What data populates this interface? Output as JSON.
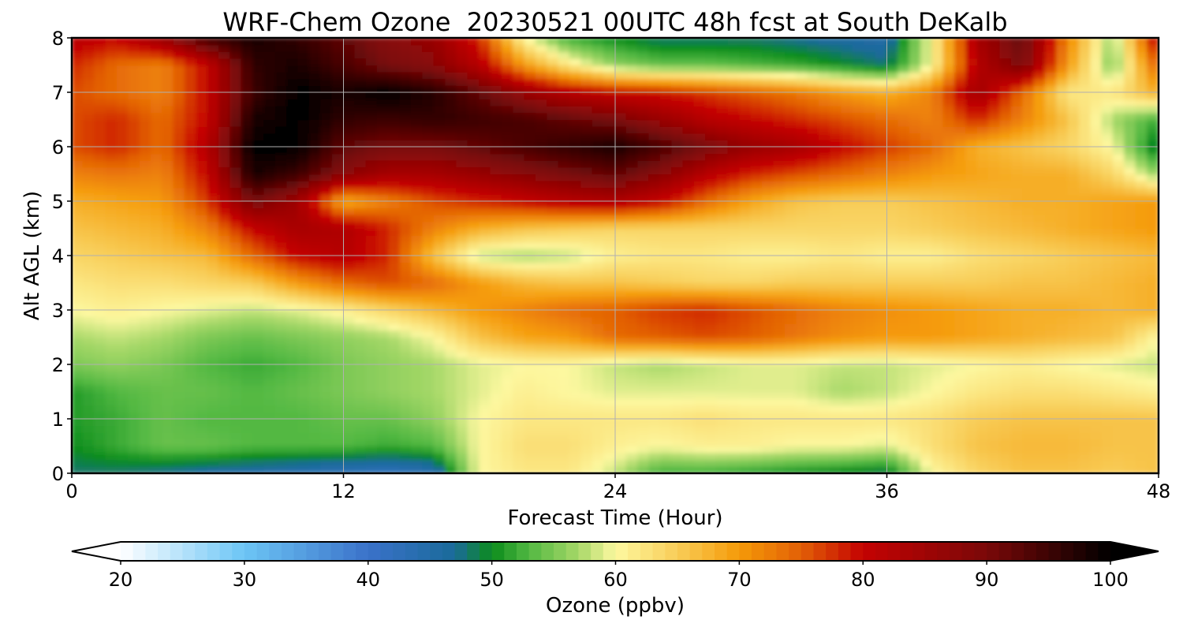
{
  "chart_data": {
    "type": "heatmap",
    "title": "WRF-Chem Ozone  20230521 00UTC 48h fcst at South DeKalb",
    "xlabel": "Forecast Time (Hour)",
    "ylabel": "Alt AGL (km)",
    "xlim": [
      0,
      48
    ],
    "ylim": [
      0,
      8
    ],
    "x_ticks": [
      "0",
      "12",
      "24",
      "36",
      "48"
    ],
    "y_ticks": [
      "0",
      "1",
      "2",
      "3",
      "4",
      "5",
      "6",
      "7",
      "8"
    ],
    "grid": true,
    "x": [
      0,
      2,
      4,
      6,
      8,
      10,
      12,
      14,
      16,
      18,
      20,
      22,
      24,
      26,
      28,
      30,
      32,
      34,
      36,
      38,
      40,
      42,
      44,
      46,
      48
    ],
    "y": [
      0,
      0.5,
      1,
      1.5,
      2,
      2.5,
      3,
      3.5,
      4,
      4.5,
      5,
      5.5,
      6,
      6.5,
      7,
      7.5,
      8
    ],
    "z": [
      [
        48,
        48,
        47,
        46,
        45,
        44,
        43,
        42,
        44,
        60,
        62,
        62,
        58,
        52,
        52,
        51,
        50,
        49,
        48,
        60,
        64,
        66,
        66,
        65,
        66
      ],
      [
        50,
        52,
        54,
        54,
        53,
        53,
        53,
        52,
        53,
        60,
        63,
        63,
        61,
        60,
        61,
        61,
        60,
        60,
        59,
        63,
        66,
        67,
        67,
        66,
        66
      ],
      [
        51,
        52,
        54,
        53,
        53,
        53,
        54,
        54,
        56,
        60,
        62,
        62,
        62,
        62,
        63,
        62,
        62,
        62,
        62,
        63,
        65,
        66,
        66,
        66,
        66
      ],
      [
        51,
        53,
        54,
        54,
        53,
        54,
        55,
        56,
        57,
        59,
        61,
        60,
        59,
        59,
        59,
        59,
        59,
        57,
        58,
        60,
        62,
        63,
        63,
        62,
        61
      ],
      [
        55,
        56,
        55,
        53,
        52,
        53,
        55,
        56,
        57,
        59,
        60,
        60,
        58,
        57,
        58,
        59,
        59,
        58,
        58,
        59,
        60,
        61,
        60,
        59,
        58
      ],
      [
        57,
        58,
        57,
        55,
        54,
        55,
        56,
        57,
        60,
        66,
        69,
        70,
        74,
        75,
        76,
        75,
        73,
        71,
        70,
        70,
        69,
        68,
        67,
        66,
        60
      ],
      [
        60,
        61,
        60,
        59,
        58,
        59,
        61,
        64,
        67,
        70,
        72,
        74,
        75,
        77,
        78,
        76,
        74,
        72,
        71,
        70,
        69,
        68,
        68,
        67,
        68
      ],
      [
        62,
        63,
        63,
        64,
        65,
        70,
        74,
        76,
        74,
        70,
        67,
        66,
        66,
        65,
        64,
        64,
        65,
        65,
        65,
        65,
        65,
        66,
        66,
        67,
        68
      ],
      [
        64,
        65,
        66,
        67,
        74,
        80,
        82,
        78,
        66,
        58,
        57,
        58,
        61,
        62,
        62,
        61,
        61,
        62,
        61,
        61,
        63,
        64,
        65,
        66,
        67
      ],
      [
        66,
        67,
        68,
        72,
        80,
        84,
        83,
        78,
        72,
        68,
        66,
        65,
        64,
        64,
        64,
        64,
        64,
        64,
        64,
        65,
        66,
        67,
        68,
        69,
        70
      ],
      [
        68,
        69,
        70,
        77,
        90,
        85,
        68,
        72,
        76,
        78,
        80,
        82,
        83,
        80,
        74,
        69,
        66,
        65,
        65,
        66,
        67,
        68,
        68,
        69,
        70
      ],
      [
        72,
        73,
        72,
        80,
        98,
        95,
        88,
        84,
        84,
        86,
        88,
        90,
        92,
        88,
        82,
        78,
        76,
        74,
        72,
        70,
        69,
        68,
        68,
        64,
        56
      ],
      [
        76,
        78,
        74,
        82,
        100,
        100,
        92,
        90,
        90,
        92,
        94,
        96,
        98,
        94,
        90,
        86,
        84,
        80,
        77,
        74,
        68,
        66,
        64,
        60,
        48
      ],
      [
        76,
        78,
        74,
        80,
        98,
        100,
        96,
        95,
        96,
        95,
        94,
        92,
        90,
        86,
        82,
        80,
        78,
        76,
        74,
        72,
        78,
        72,
        66,
        57,
        52
      ],
      [
        76,
        74,
        72,
        80,
        95,
        100,
        98,
        100,
        97,
        92,
        86,
        82,
        80,
        79,
        77,
        75,
        73,
        70,
        68,
        72,
        85,
        74,
        62,
        62,
        68
      ],
      [
        78,
        74,
        72,
        80,
        96,
        98,
        94,
        90,
        88,
        82,
        70,
        62,
        56,
        54,
        54,
        53,
        52,
        50,
        48,
        60,
        82,
        90,
        70,
        55,
        75
      ],
      [
        82,
        80,
        86,
        95,
        98,
        96,
        92,
        88,
        86,
        78,
        60,
        52,
        50,
        48,
        48,
        48,
        47,
        46,
        45,
        60,
        84,
        92,
        72,
        56,
        82
      ]
    ],
    "colorbar": {
      "label": "Ozone  (ppbv)",
      "min": 20,
      "max": 100,
      "ticks": [
        "20",
        "30",
        "40",
        "50",
        "60",
        "70",
        "80",
        "90",
        "100"
      ],
      "extend": "both"
    },
    "colors": {
      "stops": [
        [
          20,
          "#ffffff"
        ],
        [
          30,
          "#6cc5f5"
        ],
        [
          40,
          "#3a72c9"
        ],
        [
          47,
          "#1a6a9a"
        ],
        [
          50,
          "#0b8c1c"
        ],
        [
          53,
          "#52b842"
        ],
        [
          57,
          "#a6d868"
        ],
        [
          60,
          "#fdf8a0"
        ],
        [
          65,
          "#f8cd58"
        ],
        [
          70,
          "#f59a08"
        ],
        [
          75,
          "#e25f06"
        ],
        [
          80,
          "#c40202"
        ],
        [
          90,
          "#7a0808"
        ],
        [
          100,
          "#000000"
        ]
      ],
      "grid": "#b0b0b0",
      "frame": "#000000"
    }
  }
}
